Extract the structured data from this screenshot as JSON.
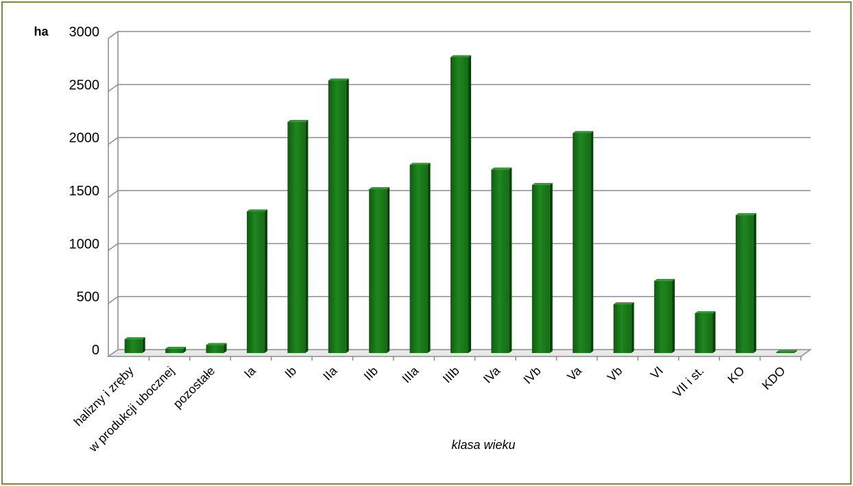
{
  "chart_data": {
    "type": "bar",
    "ylabel": "ha",
    "xlabel": "klasa wieku",
    "categories": [
      "halizny i zręby",
      "w produkcji ubocznej",
      "pozostałe",
      "Ia",
      "Ib",
      "IIa",
      "IIb",
      "IIIa",
      "IIIb",
      "IVa",
      "IVb",
      "Va",
      "Vb",
      "VI",
      "VII i st.",
      "KO",
      "KDO"
    ],
    "values": [
      130,
      40,
      75,
      1335,
      2180,
      2570,
      1545,
      1775,
      2790,
      1730,
      1585,
      2075,
      460,
      680,
      375,
      1300,
      10
    ],
    "ylim": [
      0,
      3000
    ],
    "yticks": [
      0,
      500,
      1000,
      1500,
      2000,
      2500,
      3000
    ],
    "grid": true,
    "legend": "none",
    "bar_color": "#1f7a1f"
  }
}
